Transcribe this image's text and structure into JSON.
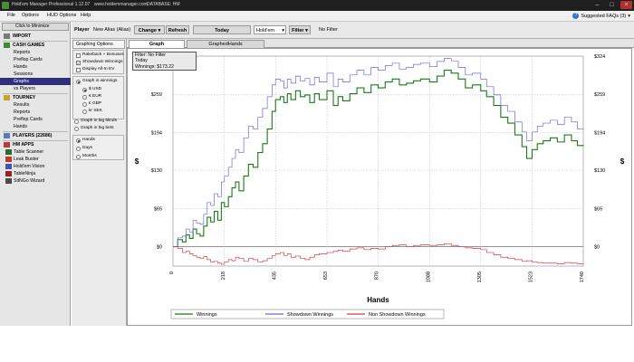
{
  "window": {
    "title": "Hold'em Manager Professional 1.12.07",
    "website": "www.holdemmanager.com",
    "database": "DATABASE: HM"
  },
  "menu": {
    "items": [
      "File",
      "Options",
      "HUD Options",
      "Help"
    ],
    "suggested_faqs": "Suggested FAQs (3)"
  },
  "sidebar": {
    "minimize": "Click to Minimize",
    "import": "IMPORT",
    "cash_games": "CASH GAMES",
    "cash_items": [
      "Reports",
      "Preflop Cards",
      "Hands",
      "Sessions",
      "Graphs",
      "vs Players"
    ],
    "tourney": "TOURNEY",
    "tourney_items": [
      "Results",
      "Reports",
      "Preflop Cards",
      "Hands"
    ],
    "players": "PLAYERS (22686)",
    "hm_apps": "HM APPS",
    "apps": [
      "Table Scanner",
      "Leak Buster",
      "Hold'em Vision",
      "TableNinja",
      "SitNGo Wizard"
    ]
  },
  "toolbar": {
    "player_label": "Player",
    "player_value": "New Alias (Alias)",
    "change": "Change",
    "refresh": "Refresh",
    "today": "Today",
    "game": "Hold'em",
    "filter": "Filter",
    "no_filter": "No Filter"
  },
  "options": {
    "tab": "Graphing Options",
    "checks": [
      {
        "label": "Rakeback + Bonuses",
        "checked": false
      },
      {
        "label": "Showdown Winnings",
        "checked": true
      },
      {
        "label": "Display All-In EV",
        "checked": false
      }
    ],
    "winnings_radio": "Graph in winnings",
    "currencies": [
      "$ USD",
      "€ EUR",
      "£ GBP",
      "kr SEK"
    ],
    "big_blinds": "Graph in big blinds",
    "big_bets": "Graph in big bets",
    "periods": [
      "Hands",
      "Days",
      "Months"
    ]
  },
  "tabs": {
    "graph": "Graph",
    "graphed_hands": "GraphedHands"
  },
  "filterbox": {
    "line1": "Filter: No Filter",
    "line2": "Today",
    "line3": "Winnings: $173.22"
  },
  "chart_data": {
    "type": "line",
    "xlabel": "Hands",
    "ylabel": "$",
    "xlim": [
      0,
      1740
    ],
    "ylim": [
      -33,
      324
    ],
    "x_ticks": [
      0,
      218,
      435,
      653,
      870,
      1088,
      1305,
      1523,
      1740
    ],
    "y_ticks": [
      0,
      65,
      130,
      194,
      259,
      324
    ],
    "y_tick_labels": [
      "$0",
      "$65",
      "$130",
      "$194",
      "$259",
      "$324"
    ],
    "grid": true,
    "legend_position": "bottom",
    "series": [
      {
        "name": "Winnings",
        "color": "#1a7a1a",
        "x": [
          0,
          20,
          40,
          55,
          70,
          85,
          100,
          115,
          130,
          145,
          160,
          175,
          190,
          205,
          218,
          235,
          250,
          265,
          280,
          300,
          320,
          340,
          360,
          380,
          400,
          420,
          435,
          455,
          470,
          485,
          500,
          520,
          540,
          560,
          580,
          600,
          620,
          653,
          680,
          700,
          720,
          750,
          780,
          810,
          840,
          870,
          900,
          930,
          960,
          990,
          1020,
          1050,
          1088,
          1120,
          1150,
          1180,
          1210,
          1240,
          1270,
          1305,
          1330,
          1360,
          1390,
          1420,
          1450,
          1480,
          1500,
          1523,
          1545,
          1570,
          1600,
          1630,
          1660,
          1690,
          1715,
          1740
        ],
        "y": [
          0,
          12,
          8,
          20,
          14,
          30,
          22,
          18,
          35,
          50,
          42,
          60,
          45,
          75,
          68,
          85,
          100,
          110,
          95,
          120,
          140,
          135,
          160,
          175,
          200,
          230,
          250,
          255,
          245,
          260,
          250,
          265,
          255,
          258,
          245,
          260,
          250,
          265,
          240,
          255,
          248,
          260,
          270,
          262,
          275,
          270,
          280,
          285,
          275,
          278,
          282,
          285,
          280,
          290,
          300,
          295,
          285,
          270,
          275,
          265,
          255,
          240,
          220,
          210,
          190,
          170,
          150,
          165,
          175,
          180,
          185,
          178,
          190,
          180,
          172,
          173
        ]
      },
      {
        "name": "Showdown Winnings",
        "color": "#6a6ae0",
        "x": [
          0,
          20,
          40,
          55,
          70,
          85,
          100,
          115,
          130,
          145,
          160,
          175,
          190,
          205,
          218,
          235,
          250,
          265,
          280,
          300,
          320,
          340,
          360,
          380,
          400,
          420,
          435,
          455,
          470,
          485,
          500,
          520,
          540,
          560,
          580,
          600,
          620,
          653,
          680,
          700,
          720,
          750,
          780,
          810,
          840,
          870,
          900,
          930,
          960,
          990,
          1020,
          1050,
          1088,
          1120,
          1150,
          1180,
          1210,
          1240,
          1270,
          1305,
          1330,
          1360,
          1390,
          1420,
          1450,
          1480,
          1500,
          1523,
          1545,
          1570,
          1600,
          1630,
          1660,
          1690,
          1715,
          1740
        ],
        "y": [
          0,
          15,
          18,
          30,
          25,
          45,
          40,
          38,
          55,
          75,
          70,
          90,
          85,
          110,
          120,
          135,
          150,
          165,
          160,
          185,
          205,
          200,
          220,
          235,
          255,
          275,
          285,
          282,
          270,
          285,
          278,
          290,
          282,
          286,
          275,
          288,
          280,
          295,
          272,
          285,
          280,
          292,
          300,
          292,
          305,
          300,
          308,
          312,
          302,
          305,
          310,
          312,
          306,
          315,
          320,
          316,
          305,
          292,
          295,
          285,
          272,
          258,
          240,
          230,
          212,
          195,
          180,
          195,
          205,
          210,
          215,
          208,
          220,
          212,
          200,
          202
        ]
      },
      {
        "name": "Non Showdown Winnings",
        "color": "#d04040",
        "x": [
          0,
          20,
          40,
          55,
          70,
          85,
          100,
          115,
          130,
          145,
          160,
          175,
          190,
          205,
          218,
          235,
          250,
          265,
          280,
          300,
          320,
          340,
          360,
          380,
          400,
          420,
          435,
          455,
          470,
          485,
          500,
          520,
          540,
          560,
          580,
          600,
          620,
          653,
          680,
          700,
          720,
          750,
          780,
          810,
          840,
          870,
          900,
          930,
          960,
          990,
          1020,
          1050,
          1088,
          1120,
          1150,
          1180,
          1210,
          1240,
          1270,
          1305,
          1330,
          1360,
          1390,
          1420,
          1450,
          1480,
          1500,
          1523,
          1545,
          1570,
          1600,
          1630,
          1660,
          1690,
          1715,
          1740
        ],
        "y": [
          0,
          -3,
          -10,
          -8,
          -12,
          -15,
          -18,
          -20,
          -17,
          -22,
          -26,
          -25,
          -28,
          -30,
          -26,
          -22,
          -24,
          -18,
          -20,
          -25,
          -20,
          -22,
          -26,
          -24,
          -20,
          -15,
          -12,
          -10,
          -15,
          -12,
          -18,
          -16,
          -20,
          -22,
          -18,
          -14,
          -12,
          -10,
          -8,
          -6,
          -8,
          -4,
          -2,
          -5,
          -3,
          -4,
          0,
          2,
          3,
          0,
          2,
          3,
          2,
          3,
          5,
          2,
          0,
          -2,
          -3,
          -5,
          -10,
          -14,
          -18,
          -20,
          -22,
          -25,
          -24,
          -26,
          -27,
          -28,
          -28,
          -29,
          -27,
          -28,
          -29,
          -30
        ]
      }
    ]
  }
}
